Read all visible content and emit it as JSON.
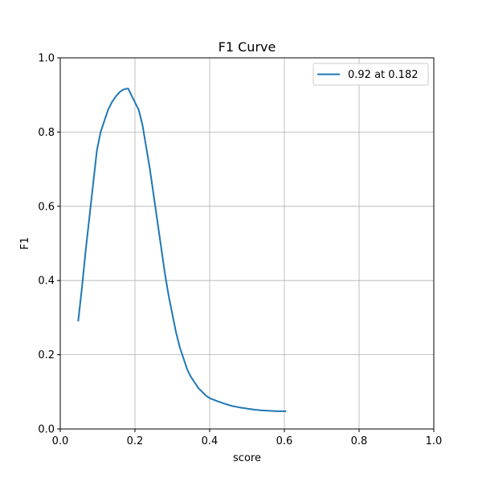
{
  "chart_data": {
    "type": "line",
    "title": "F1 Curve",
    "xlabel": "score",
    "ylabel": "F1",
    "xlim": [
      0.0,
      1.0
    ],
    "ylim": [
      0.0,
      1.0
    ],
    "xticks": [
      "0.0",
      "0.2",
      "0.4",
      "0.6",
      "0.8",
      "1.0"
    ],
    "yticks": [
      "0.0",
      "0.2",
      "0.4",
      "0.6",
      "0.8",
      "1.0"
    ],
    "grid": true,
    "legend_position": "top-right",
    "line_color": "#1f77b4",
    "series": [
      {
        "name": "0.92 at 0.182",
        "x": [
          0.048,
          0.058,
          0.068,
          0.078,
          0.088,
          0.098,
          0.108,
          0.118,
          0.128,
          0.138,
          0.148,
          0.158,
          0.168,
          0.178,
          0.182,
          0.19,
          0.2,
          0.21,
          0.22,
          0.23,
          0.24,
          0.25,
          0.26,
          0.27,
          0.28,
          0.29,
          0.3,
          0.31,
          0.32,
          0.33,
          0.34,
          0.35,
          0.36,
          0.37,
          0.38,
          0.39,
          0.4,
          0.42,
          0.44,
          0.46,
          0.48,
          0.5,
          0.52,
          0.54,
          0.56,
          0.58,
          0.605
        ],
        "y": [
          0.29,
          0.38,
          0.48,
          0.57,
          0.66,
          0.75,
          0.8,
          0.83,
          0.86,
          0.88,
          0.895,
          0.907,
          0.914,
          0.917,
          0.917,
          0.9,
          0.88,
          0.86,
          0.82,
          0.76,
          0.7,
          0.63,
          0.56,
          0.49,
          0.42,
          0.36,
          0.31,
          0.26,
          0.22,
          0.19,
          0.16,
          0.14,
          0.125,
          0.11,
          0.1,
          0.09,
          0.083,
          0.075,
          0.068,
          0.062,
          0.058,
          0.055,
          0.052,
          0.05,
          0.049,
          0.048,
          0.048
        ]
      }
    ]
  }
}
